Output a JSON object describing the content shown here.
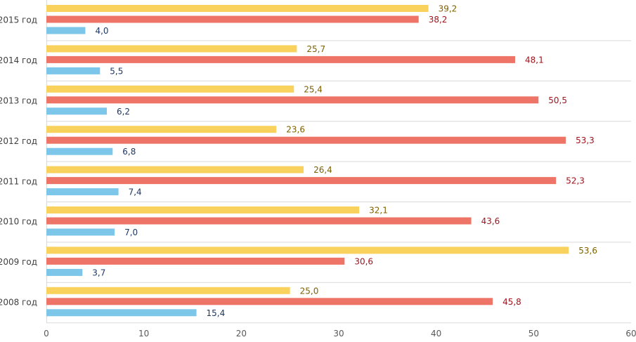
{
  "chart_data": {
    "type": "bar",
    "orientation": "horizontal",
    "title": "",
    "xlabel": "",
    "ylabel": "",
    "xlim": [
      0,
      60
    ],
    "x_ticks": [
      0,
      10,
      20,
      30,
      40,
      50,
      60
    ],
    "x_tick_labels": [
      "0",
      "10",
      "20",
      "30",
      "40",
      "50",
      "60"
    ],
    "grid": "horizontal separators between categories",
    "legend": "none",
    "categories": [
      "2015 год",
      "2014 год",
      "2013 год",
      "2012 год",
      "2011 год",
      "2010 год",
      "2009 год",
      "2008 год"
    ],
    "series": [
      {
        "name": "series-yellow",
        "color": "#F9D25E",
        "label_color": "#7F6000",
        "values": [
          39.2,
          25.7,
          25.4,
          23.6,
          26.4,
          32.1,
          53.6,
          25.0
        ],
        "labels": [
          "39,2",
          "25,7",
          "25,4",
          "23,6",
          "26,4",
          "32,1",
          "53,6",
          "25,0"
        ]
      },
      {
        "name": "series-red",
        "color": "#EE7467",
        "label_color": "#A0141E",
        "values": [
          38.2,
          48.1,
          50.5,
          53.3,
          52.3,
          43.6,
          30.6,
          45.8
        ],
        "labels": [
          "38,2",
          "48,1",
          "50,5",
          "53,3",
          "52,3",
          "43,6",
          "30,6",
          "45,8"
        ]
      },
      {
        "name": "series-blue",
        "color": "#7CC6EA",
        "label_color": "#1F3864",
        "values": [
          4.0,
          5.5,
          6.2,
          6.8,
          7.4,
          7.0,
          3.7,
          15.4
        ],
        "labels": [
          "4,0",
          "5,5",
          "6,2",
          "6,8",
          "7,4",
          "7,0",
          "3,7",
          "15,4"
        ]
      }
    ]
  }
}
